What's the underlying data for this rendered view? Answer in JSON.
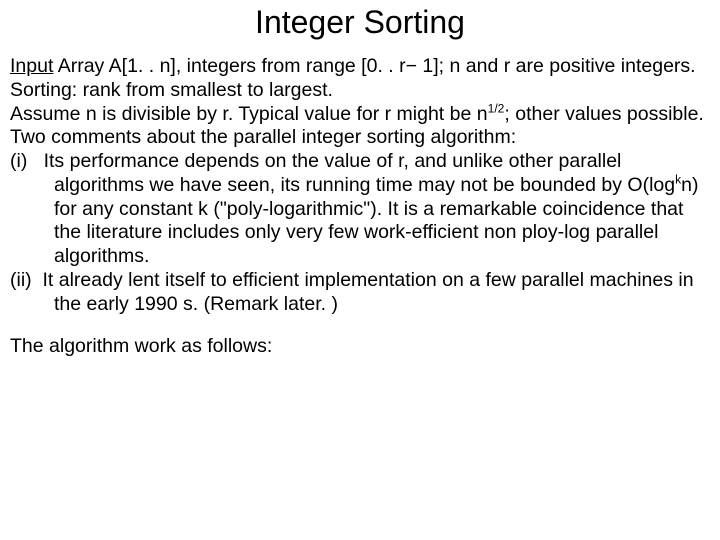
{
  "typography": {
    "title_fontsize_pt": 24,
    "body_fontsize_pt": 15,
    "font_family": "Arial",
    "text_color": "#000000",
    "background_color": "#ffffff"
  },
  "title": "Integer Sorting",
  "input_label": "Input",
  "input_tail": " Array A[1. . n], integers from range [0. . r− 1]; n and r are positive integers.",
  "sorting_line": "Sorting: rank from smallest to largest.",
  "assume_pre": "Assume n is divisible by r. Typical value for r might be n",
  "assume_exp": "1/2",
  "assume_post": "; other values possible.",
  "two_comments": "Two comments about the parallel integer sorting algorithm:",
  "item_i_marker": "(i)",
  "item_i_pre": "Its performance depends on the value of r, and unlike other parallel algorithms we have seen, its running time may not be bounded by O(log",
  "item_i_exp": "k",
  "item_i_post": "n) for any constant k (\"poly-logarithmic\"). It is a remarkable coincidence that the literature includes only very few work-efficient non ploy-log parallel algorithms.",
  "item_ii_marker": "(ii)",
  "item_ii_text": "It already lent itself to efficient implementation on a few parallel machines in the early 1990 s. (Remark later. )",
  "closing": "The algorithm work as follows:"
}
